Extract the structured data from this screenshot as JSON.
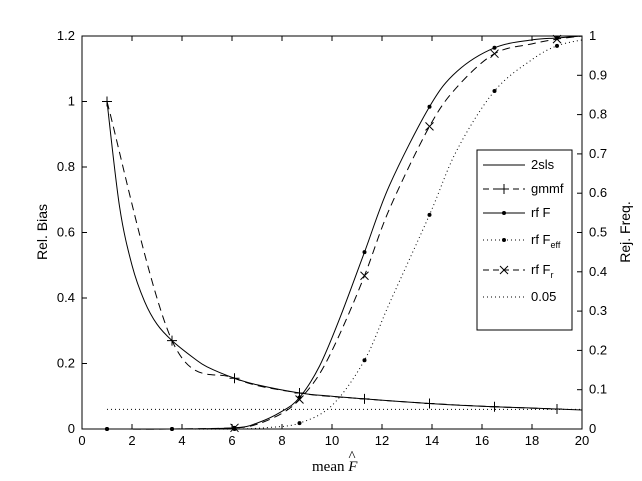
{
  "chart_data": {
    "type": "line",
    "xlabel": "mean F̂",
    "ylabel_left": "Rel. Bias",
    "ylabel_right": "Rej. Freq.",
    "xlim": [
      0,
      20
    ],
    "ylim_left": [
      0,
      1.2
    ],
    "ylim_right": [
      0,
      1
    ],
    "x_ticks": [
      "0",
      "2",
      "4",
      "6",
      "8",
      "10",
      "12",
      "14",
      "16",
      "18",
      "20"
    ],
    "y_left_ticks": [
      "0",
      "0.2",
      "0.4",
      "0.6",
      "0.8",
      "1",
      "1.2"
    ],
    "y_right_ticks": [
      "0",
      "0.1",
      "0.2",
      "0.3",
      "0.4",
      "0.5",
      "0.6",
      "0.7",
      "0.8",
      "0.9",
      "1"
    ],
    "grid": false,
    "legend_position": "right",
    "series": [
      {
        "name": "2sls",
        "axis": "left",
        "style": "solid",
        "marker": "none",
        "x": [
          1,
          1.5,
          2,
          2.5,
          3,
          3.6,
          4.5,
          5,
          6.1,
          7,
          8.7,
          10,
          11.3,
          12.5,
          13.9,
          15,
          16.5,
          18,
          19,
          20
        ],
        "y": [
          1.0,
          0.68,
          0.5,
          0.39,
          0.32,
          0.27,
          0.215,
          0.19,
          0.155,
          0.135,
          0.11,
          0.1,
          0.092,
          0.085,
          0.078,
          0.073,
          0.068,
          0.064,
          0.061,
          0.058
        ]
      },
      {
        "name": "gmmf",
        "axis": "left",
        "style": "dashed",
        "marker": "plus",
        "x": [
          1,
          3.6,
          6.1,
          8.7,
          11.3,
          13.9,
          16.5,
          19
        ],
        "y": [
          1.0,
          0.27,
          0.155,
          0.11,
          0.092,
          0.078,
          0.068,
          0.061
        ]
      },
      {
        "name": "rf F",
        "axis": "right",
        "style": "solid",
        "marker": "dot",
        "x": [
          1,
          3.6,
          6.1,
          7,
          8,
          8.7,
          9.5,
          10.3,
          11.3,
          12.3,
          13.9,
          15,
          16.5,
          18,
          19,
          20
        ],
        "y": [
          0,
          0,
          0.003,
          0.015,
          0.045,
          0.08,
          0.16,
          0.28,
          0.45,
          0.62,
          0.82,
          0.91,
          0.97,
          0.99,
          0.995,
          1.0
        ]
      },
      {
        "name": "rf F_eff",
        "axis": "right",
        "style": "dotted",
        "marker": "dot",
        "x": [
          1,
          3.6,
          6.1,
          7.5,
          8.7,
          10,
          11.3,
          12.3,
          13.9,
          15,
          16.5,
          18,
          19,
          20
        ],
        "y": [
          0,
          0,
          0,
          0.004,
          0.015,
          0.06,
          0.175,
          0.32,
          0.545,
          0.71,
          0.86,
          0.94,
          0.975,
          0.99
        ]
      },
      {
        "name": "rf F_r",
        "axis": "right",
        "style": "dashed",
        "marker": "x",
        "x": [
          1,
          3.6,
          6.1,
          7,
          8,
          8.7,
          9.5,
          10.3,
          11.3,
          12.3,
          13.9,
          15,
          16.5,
          18,
          19,
          20
        ],
        "y": [
          0,
          0,
          0.003,
          0.012,
          0.04,
          0.075,
          0.14,
          0.24,
          0.39,
          0.56,
          0.77,
          0.87,
          0.955,
          0.98,
          0.992,
          1.0
        ]
      },
      {
        "name": "0.05",
        "axis": "right",
        "style": "dotted",
        "marker": "none",
        "x": [
          1,
          20
        ],
        "y": [
          0.05,
          0.05
        ]
      }
    ]
  },
  "legend_labels": {
    "2sls": "2sls",
    "gmmf": "gmmf",
    "rfF": "rf F",
    "rfFeff_base": "rf F",
    "rfFeff_sub": "eff",
    "rfFr_base": "rf F",
    "rfFr_sub": "r",
    "ref": "0.05"
  },
  "xlabel_parts": {
    "prefix": "mean ",
    "symbol": "F",
    "hat": "^"
  }
}
